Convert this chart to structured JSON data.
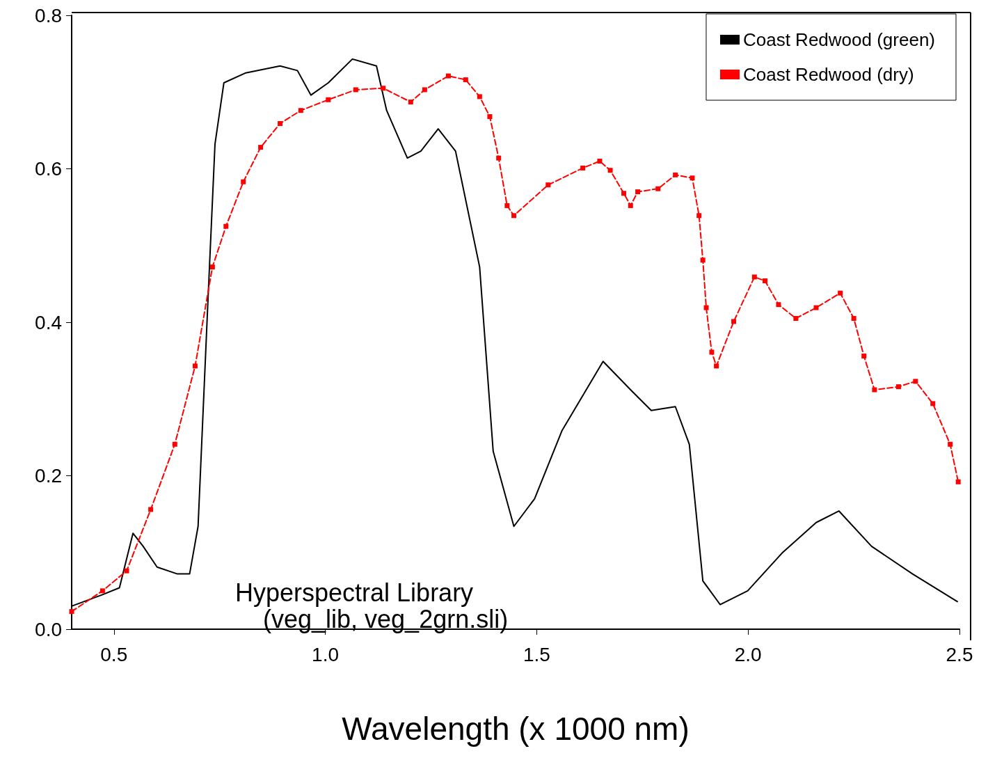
{
  "chart_data": {
    "type": "line",
    "xlabel": "Wavelength (x 1000 nm)",
    "xlim": [
      0.4,
      2.5
    ],
    "xticks": [
      {
        "value": 0.5,
        "label": "0.5"
      },
      {
        "value": 1.0,
        "label": "1.0"
      },
      {
        "value": 1.5,
        "label": "1.5"
      },
      {
        "value": 2.0,
        "label": "2.0"
      },
      {
        "value": 2.5,
        "label": "2.5"
      }
    ],
    "ylim": [
      0,
      0.8
    ],
    "yticks": [
      {
        "value": 0,
        "label": "0.0"
      },
      {
        "value": 0.2,
        "label": "0.2"
      },
      {
        "value": 0.4,
        "label": "0.4"
      },
      {
        "value": 0.6,
        "label": "0.6"
      },
      {
        "value": 0.8,
        "label": "0.8"
      }
    ],
    "grid": false,
    "legend": "top right",
    "annotations": [
      "Hyperspectral Library",
      "(veg_lib, veg_2grn.sli)"
    ],
    "series": [
      {
        "name": "Coast Redwood (green)",
        "color": "#000000",
        "marker": "none",
        "line_style": "solid",
        "x": [
          0.4,
          0.473,
          0.513,
          0.545,
          0.569,
          0.602,
          0.65,
          0.679,
          0.699,
          0.723,
          0.739,
          0.76,
          0.812,
          0.893,
          0.934,
          0.966,
          1.007,
          1.064,
          1.121,
          1.145,
          1.194,
          1.226,
          1.267,
          1.308,
          1.365,
          1.397,
          1.446,
          1.495,
          1.56,
          1.657,
          1.722,
          1.771,
          1.828,
          1.861,
          1.893,
          1.934,
          1.999,
          2.08,
          2.161,
          2.215,
          2.292,
          2.389,
          2.495
        ],
        "values": [
          0.03,
          0.045,
          0.054,
          0.125,
          0.108,
          0.081,
          0.072,
          0.072,
          0.134,
          0.436,
          0.632,
          0.712,
          0.725,
          0.734,
          0.728,
          0.696,
          0.712,
          0.743,
          0.734,
          0.676,
          0.614,
          0.623,
          0.652,
          0.623,
          0.472,
          0.232,
          0.134,
          0.17,
          0.259,
          0.349,
          0.312,
          0.285,
          0.29,
          0.241,
          0.063,
          0.032,
          0.05,
          0.099,
          0.139,
          0.154,
          0.108,
          0.072,
          0.036
        ]
      },
      {
        "name": "Coast Redwood (dry)",
        "color": "#ff0000",
        "marker": "square",
        "line_style": "dashed",
        "x": [
          0.4,
          0.473,
          0.53,
          0.587,
          0.644,
          0.692,
          0.733,
          0.765,
          0.806,
          0.847,
          0.893,
          0.942,
          1.007,
          1.072,
          1.137,
          1.202,
          1.235,
          1.291,
          1.332,
          1.365,
          1.389,
          1.41,
          1.43,
          1.446,
          1.527,
          1.609,
          1.649,
          1.674,
          1.706,
          1.722,
          1.739,
          1.787,
          1.828,
          1.868,
          1.884,
          1.893,
          1.901,
          1.914,
          1.925,
          1.966,
          2.015,
          2.04,
          2.072,
          2.113,
          2.161,
          2.218,
          2.25,
          2.274,
          2.299,
          2.356,
          2.396,
          2.437,
          2.478,
          2.497
        ],
        "values": [
          0.023,
          0.05,
          0.076,
          0.156,
          0.241,
          0.343,
          0.472,
          0.525,
          0.583,
          0.628,
          0.659,
          0.676,
          0.69,
          0.703,
          0.705,
          0.687,
          0.703,
          0.721,
          0.716,
          0.694,
          0.668,
          0.614,
          0.552,
          0.539,
          0.579,
          0.601,
          0.61,
          0.598,
          0.568,
          0.552,
          0.57,
          0.574,
          0.592,
          0.588,
          0.539,
          0.481,
          0.419,
          0.361,
          0.343,
          0.401,
          0.459,
          0.454,
          0.423,
          0.405,
          0.419,
          0.438,
          0.405,
          0.356,
          0.312,
          0.316,
          0.323,
          0.294,
          0.241,
          0.192
        ]
      }
    ]
  }
}
